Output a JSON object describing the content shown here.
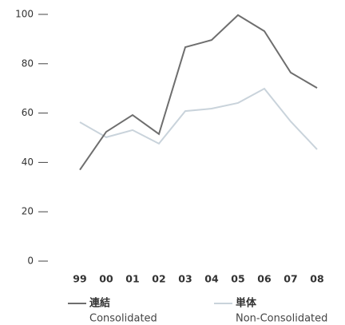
{
  "chart_data": {
    "type": "line",
    "categories": [
      "99",
      "00",
      "01",
      "02",
      "03",
      "04",
      "05",
      "06",
      "07",
      "08"
    ],
    "series": [
      {
        "name": "連結",
        "name_en": "Consolidated",
        "color": "#6e6e6e",
        "values": [
          37,
          52.4,
          59.2,
          51.5,
          86.7,
          89.6,
          99.7,
          93.2,
          76.4,
          70.2
        ]
      },
      {
        "name": "単体",
        "name_en": "Non-Consolidated",
        "color": "#c9d3db",
        "values": [
          56.3,
          50.2,
          53.1,
          47.6,
          60.8,
          61.8,
          64.1,
          69.9,
          56.6,
          45.3
        ]
      }
    ],
    "ylim": [
      0,
      100
    ],
    "yticks": [
      0,
      20,
      40,
      60,
      80,
      100
    ],
    "grid": false
  }
}
